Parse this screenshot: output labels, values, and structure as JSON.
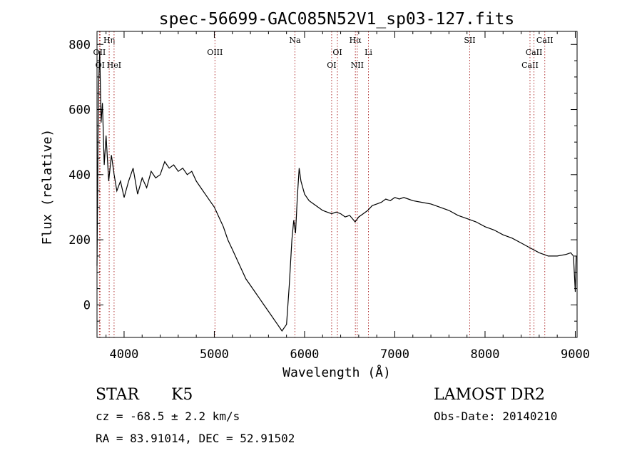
{
  "chart_data": {
    "type": "line",
    "title": "spec-56699-GAC085N52V1_sp03-127.fits",
    "xlabel": "Wavelength (Å)",
    "ylabel": "Flux (relative)",
    "xlim": [
      3700,
      9020
    ],
    "ylim": [
      -100,
      840
    ],
    "x_ticks": [
      4000,
      5000,
      6000,
      7000,
      8000,
      9000
    ],
    "x_tick_labels": [
      "4000",
      "5000",
      "6000",
      "7000",
      "8000",
      "9000"
    ],
    "y_ticks": [
      0,
      200,
      400,
      600,
      800
    ],
    "y_tick_labels": [
      "0",
      "200",
      "400",
      "600",
      "800"
    ],
    "grid": false,
    "series": [
      {
        "values": [
          [
            3700,
            120
          ],
          [
            3715,
            650
          ],
          [
            3730,
            780
          ],
          [
            3745,
            560
          ],
          [
            3760,
            620
          ],
          [
            3780,
            430
          ],
          [
            3800,
            520
          ],
          [
            3830,
            380
          ],
          [
            3860,
            460
          ],
          [
            3890,
            400
          ],
          [
            3920,
            350
          ],
          [
            3960,
            380
          ],
          [
            4000,
            330
          ],
          [
            4050,
            380
          ],
          [
            4100,
            420
          ],
          [
            4150,
            340
          ],
          [
            4200,
            390
          ],
          [
            4250,
            360
          ],
          [
            4300,
            410
          ],
          [
            4350,
            390
          ],
          [
            4400,
            400
          ],
          [
            4450,
            440
          ],
          [
            4500,
            420
          ],
          [
            4550,
            430
          ],
          [
            4600,
            410
          ],
          [
            4650,
            420
          ],
          [
            4700,
            400
          ],
          [
            4750,
            410
          ],
          [
            4800,
            380
          ],
          [
            4850,
            360
          ],
          [
            4900,
            340
          ],
          [
            4950,
            320
          ],
          [
            5000,
            300
          ],
          [
            5050,
            270
          ],
          [
            5100,
            240
          ],
          [
            5150,
            200
          ],
          [
            5200,
            170
          ],
          [
            5250,
            140
          ],
          [
            5300,
            110
          ],
          [
            5350,
            80
          ],
          [
            5400,
            60
          ],
          [
            5450,
            40
          ],
          [
            5500,
            20
          ],
          [
            5550,
            0
          ],
          [
            5600,
            -20
          ],
          [
            5650,
            -40
          ],
          [
            5700,
            -60
          ],
          [
            5750,
            -80
          ],
          [
            5800,
            -60
          ],
          [
            5830,
            60
          ],
          [
            5860,
            200
          ],
          [
            5880,
            260
          ],
          [
            5900,
            220
          ],
          [
            5920,
            330
          ],
          [
            5940,
            420
          ],
          [
            5960,
            380
          ],
          [
            6000,
            340
          ],
          [
            6050,
            320
          ],
          [
            6100,
            310
          ],
          [
            6150,
            300
          ],
          [
            6200,
            290
          ],
          [
            6250,
            285
          ],
          [
            6300,
            280
          ],
          [
            6350,
            285
          ],
          [
            6400,
            280
          ],
          [
            6450,
            270
          ],
          [
            6500,
            275
          ],
          [
            6560,
            255
          ],
          [
            6600,
            270
          ],
          [
            6650,
            280
          ],
          [
            6700,
            290
          ],
          [
            6750,
            305
          ],
          [
            6800,
            310
          ],
          [
            6850,
            315
          ],
          [
            6900,
            325
          ],
          [
            6950,
            320
          ],
          [
            7000,
            330
          ],
          [
            7050,
            325
          ],
          [
            7100,
            330
          ],
          [
            7150,
            325
          ],
          [
            7200,
            320
          ],
          [
            7300,
            315
          ],
          [
            7400,
            310
          ],
          [
            7500,
            300
          ],
          [
            7600,
            290
          ],
          [
            7700,
            275
          ],
          [
            7800,
            265
          ],
          [
            7900,
            255
          ],
          [
            8000,
            240
          ],
          [
            8100,
            230
          ],
          [
            8200,
            215
          ],
          [
            8300,
            205
          ],
          [
            8400,
            190
          ],
          [
            8500,
            175
          ],
          [
            8600,
            160
          ],
          [
            8700,
            150
          ],
          [
            8800,
            150
          ],
          [
            8900,
            155
          ],
          [
            8950,
            160
          ],
          [
            8980,
            150
          ],
          [
            9000,
            40
          ],
          [
            9010,
            150
          ]
        ]
      }
    ],
    "lines": [
      {
        "label": "OII",
        "x": 3727,
        "row": 1
      },
      {
        "label": "OI",
        "x": 3734,
        "row": 2
      },
      {
        "label": "Hη",
        "x": 3835,
        "row": 0
      },
      {
        "label": "HeI",
        "x": 3889,
        "row": 2
      },
      {
        "label": "OIII",
        "x": 5007,
        "row": 1
      },
      {
        "label": "Na",
        "x": 5893,
        "row": 0
      },
      {
        "label": "OI",
        "x": 6300,
        "row": 2
      },
      {
        "label": "OI",
        "x": 6364,
        "row": 1
      },
      {
        "label": "Hα",
        "x": 6563,
        "row": 0
      },
      {
        "label": "NII",
        "x": 6584,
        "row": 2
      },
      {
        "label": "Li",
        "x": 6708,
        "row": 1
      },
      {
        "label": "SII",
        "x": 7830,
        "row": 0
      },
      {
        "label": "CaII",
        "x": 8498,
        "row": 2
      },
      {
        "label": "CaII",
        "x": 8542,
        "row": 1
      },
      {
        "label": "CaII",
        "x": 8662,
        "row": 0
      }
    ]
  },
  "info": {
    "object_class": "STAR",
    "subclass": "K5",
    "redshift": "cz = -68.5 ± 2.2 km/s",
    "coords": "RA =  83.91014, DEC =  52.91502",
    "survey": "LAMOST DR2",
    "obs_date": "Obs-Date: 20140210"
  }
}
